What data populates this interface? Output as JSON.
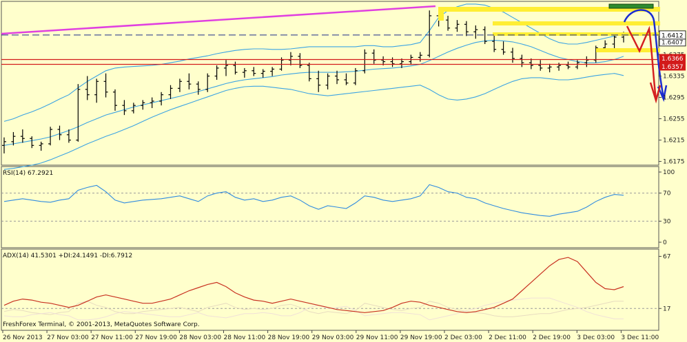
{
  "chart_data": [
    {
      "type": "line",
      "panel": "price",
      "series": [
        {
          "role": "bars",
          "ohlc": [
            [
              1.6205,
              1.622,
              1.619,
              1.6212
            ],
            [
              1.6212,
              1.623,
              1.6205,
              1.6222
            ],
            [
              1.6222,
              1.6235,
              1.621,
              1.6218
            ],
            [
              1.6218,
              1.6222,
              1.62,
              1.6205
            ],
            [
              1.6205,
              1.6212,
              1.6195,
              1.6208
            ],
            [
              1.6208,
              1.624,
              1.6205,
              1.6235
            ],
            [
              1.6235,
              1.6242,
              1.6215,
              1.6225
            ],
            [
              1.6225,
              1.6235,
              1.621,
              1.6215
            ],
            [
              1.6215,
              1.632,
              1.6212,
              1.631
            ],
            [
              1.631,
              1.6335,
              1.629,
              1.63
            ],
            [
              1.63,
              1.633,
              1.6285,
              1.6325
            ],
            [
              1.6325,
              1.634,
              1.6295,
              1.6305
            ],
            [
              1.6305,
              1.631,
              1.627,
              1.628
            ],
            [
              1.628,
              1.629,
              1.6262,
              1.627
            ],
            [
              1.627,
              1.6285,
              1.6265,
              1.628
            ],
            [
              1.628,
              1.629,
              1.6272,
              1.6285
            ],
            [
              1.6285,
              1.6295,
              1.6275,
              1.6288
            ],
            [
              1.6288,
              1.6305,
              1.628,
              1.63
            ],
            [
              1.63,
              1.6318,
              1.6292,
              1.6312
            ],
            [
              1.6312,
              1.633,
              1.6305,
              1.6325
            ],
            [
              1.6325,
              1.634,
              1.631,
              1.632
            ],
            [
              1.632,
              1.6325,
              1.63,
              1.631
            ],
            [
              1.631,
              1.634,
              1.6305,
              1.6335
            ],
            [
              1.6335,
              1.6355,
              1.6328,
              1.635
            ],
            [
              1.635,
              1.6365,
              1.6335,
              1.6355
            ],
            [
              1.6355,
              1.6362,
              1.6338,
              1.6342
            ],
            [
              1.6342,
              1.635,
              1.6332,
              1.6345
            ],
            [
              1.6345,
              1.6352,
              1.6335,
              1.634
            ],
            [
              1.634,
              1.6348,
              1.6332,
              1.6344
            ],
            [
              1.6344,
              1.6352,
              1.6335,
              1.6348
            ],
            [
              1.6348,
              1.637,
              1.6345,
              1.6365
            ],
            [
              1.6365,
              1.638,
              1.6355,
              1.6372
            ],
            [
              1.6372,
              1.6378,
              1.635,
              1.6355
            ],
            [
              1.6355,
              1.636,
              1.6325,
              1.633
            ],
            [
              1.633,
              1.6345,
              1.6305,
              1.6318
            ],
            [
              1.6318,
              1.634,
              1.631,
              1.6335
            ],
            [
              1.6335,
              1.6345,
              1.632,
              1.6328
            ],
            [
              1.6328,
              1.634,
              1.6318,
              1.6322
            ],
            [
              1.6322,
              1.635,
              1.6318,
              1.6345
            ],
            [
              1.6345,
              1.6385,
              1.634,
              1.6378
            ],
            [
              1.6378,
              1.6385,
              1.6358,
              1.6365
            ],
            [
              1.6365,
              1.6372,
              1.6355,
              1.6362
            ],
            [
              1.6362,
              1.637,
              1.6352,
              1.6358
            ],
            [
              1.6358,
              1.6368,
              1.635,
              1.6362
            ],
            [
              1.6362,
              1.6375,
              1.6356,
              1.637
            ],
            [
              1.637,
              1.638,
              1.6362,
              1.6374
            ],
            [
              1.6374,
              1.6458,
              1.637,
              1.6448
            ],
            [
              1.6448,
              1.6462,
              1.6428,
              1.644
            ],
            [
              1.644,
              1.6448,
              1.642,
              1.6425
            ],
            [
              1.6425,
              1.644,
              1.6418,
              1.6432
            ],
            [
              1.6432,
              1.6438,
              1.641,
              1.6418
            ],
            [
              1.6418,
              1.643,
              1.6405,
              1.6422
            ],
            [
              1.6422,
              1.6428,
              1.6395,
              1.64
            ],
            [
              1.64,
              1.6412,
              1.638,
              1.6385
            ],
            [
              1.6385,
              1.64,
              1.6375,
              1.638
            ],
            [
              1.638,
              1.6388,
              1.636,
              1.6368
            ],
            [
              1.6368,
              1.6375,
              1.6352,
              1.636
            ],
            [
              1.636,
              1.6368,
              1.6348,
              1.6355
            ],
            [
              1.6355,
              1.6365,
              1.6345,
              1.635
            ],
            [
              1.635,
              1.6358,
              1.6342,
              1.6352
            ],
            [
              1.6352,
              1.636,
              1.6345,
              1.6355
            ],
            [
              1.6355,
              1.6362,
              1.6348,
              1.6352
            ],
            [
              1.6352,
              1.6365,
              1.6348,
              1.636
            ],
            [
              1.636,
              1.6372,
              1.6352,
              1.6365
            ],
            [
              1.6365,
              1.6392,
              1.636,
              1.6388
            ],
            [
              1.6388,
              1.6402,
              1.638,
              1.6395
            ],
            [
              1.6395,
              1.6412,
              1.6385,
              1.6408
            ],
            [
              1.6408,
              1.6418,
              1.6398,
              1.6412
            ]
          ]
        },
        {
          "role": "bollinger-upper",
          "values": [
            1.625,
            1.6255,
            1.6262,
            1.6268,
            1.6275,
            1.6283,
            1.6292,
            1.63,
            1.6313,
            1.6325,
            1.6335,
            1.6345,
            1.635,
            1.6352,
            1.6353,
            1.6354,
            1.6355,
            1.6357,
            1.636,
            1.6363,
            1.6367,
            1.637,
            1.6373,
            1.6377,
            1.638,
            1.6383,
            1.6385,
            1.6386,
            1.6386,
            1.6385,
            1.6385,
            1.6386,
            1.6388,
            1.639,
            1.639,
            1.639,
            1.639,
            1.639,
            1.639,
            1.6392,
            1.6392,
            1.639,
            1.639,
            1.6392,
            1.6394,
            1.6398,
            1.642,
            1.6445,
            1.6458,
            1.6465,
            1.647,
            1.647,
            1.6468,
            1.6462,
            1.6455,
            1.6445,
            1.6435,
            1.6425,
            1.6415,
            1.6405,
            1.6398,
            1.6395,
            1.6395,
            1.6398,
            1.6402,
            1.6406,
            1.641,
            1.6414
          ]
        },
        {
          "role": "bollinger-middle",
          "values": [
            1.6205,
            1.6208,
            1.6211,
            1.6214,
            1.6217,
            1.6221,
            1.6227,
            1.6233,
            1.624,
            1.6248,
            1.6255,
            1.6262,
            1.6267,
            1.6272,
            1.6277,
            1.6281,
            1.6285,
            1.6289,
            1.6293,
            1.6297,
            1.6302,
            1.6306,
            1.6311,
            1.6316,
            1.6321,
            1.6325,
            1.6328,
            1.633,
            1.6332,
            1.6334,
            1.6337,
            1.6339,
            1.6341,
            1.6342,
            1.6342,
            1.6342,
            1.6342,
            1.6343,
            1.6344,
            1.6346,
            1.6348,
            1.6349,
            1.635,
            1.6352,
            1.6354,
            1.6357,
            1.6364,
            1.6372,
            1.638,
            1.6387,
            1.6393,
            1.6398,
            1.6401,
            1.6402,
            1.6401,
            1.6399,
            1.6395,
            1.639,
            1.6383,
            1.6376,
            1.637,
            1.6366,
            1.6362,
            1.636,
            1.636,
            1.6362,
            1.6366,
            1.6372
          ]
        },
        {
          "role": "bollinger-lower",
          "values": [
            1.616,
            1.6162,
            1.6165,
            1.6168,
            1.6172,
            1.6178,
            1.6185,
            1.6192,
            1.62,
            1.6208,
            1.6215,
            1.6222,
            1.6228,
            1.6235,
            1.6242,
            1.625,
            1.6258,
            1.6265,
            1.6272,
            1.6278,
            1.6284,
            1.629,
            1.6296,
            1.6302,
            1.6308,
            1.6312,
            1.6315,
            1.6316,
            1.6316,
            1.6314,
            1.6312,
            1.631,
            1.6306,
            1.6302,
            1.63,
            1.6298,
            1.63,
            1.6302,
            1.6304,
            1.6306,
            1.6308,
            1.631,
            1.6312,
            1.6314,
            1.6316,
            1.6318,
            1.631,
            1.63,
            1.6292,
            1.629,
            1.6292,
            1.6296,
            1.6302,
            1.631,
            1.6318,
            1.6325,
            1.633,
            1.6332,
            1.6332,
            1.633,
            1.6328,
            1.6328,
            1.633,
            1.6333,
            1.6336,
            1.6338,
            1.634,
            1.6336
          ]
        }
      ],
      "ylim": [
        1.6168,
        1.6475
      ],
      "yticks": [
        "1.6175",
        "1.6215",
        "1.6255",
        "1.6295",
        "1.6335",
        "1.6375"
      ],
      "levels": {
        "blue_dashed": 1.6412,
        "red_upper": 1.6366,
        "red_lower": 1.6357
      },
      "price_tags": {
        "current": "1.6412",
        "behind_current": "1.6407",
        "red_upper": "1.6366",
        "red_lower": "1.6357"
      },
      "colors": {
        "bars": "#000000",
        "bollinger": "#3aa3e3",
        "trendline": "#e040e0",
        "horizontal_red": "#d21a1a",
        "zone_yellow": "#ffee33",
        "zone_green": "#2e8b2e",
        "forecast_blue": "#1a2bd0",
        "forecast_red": "#d42020"
      }
    },
    {
      "type": "line",
      "panel": "rsi",
      "title": "RSI(14) 67.2921",
      "ylim": [
        0,
        100
      ],
      "yticks": [
        "100",
        "70",
        "30",
        "0"
      ],
      "levels": [
        70,
        30
      ],
      "series": [
        {
          "role": "rsi",
          "values": [
            58,
            60,
            62,
            60,
            58,
            57,
            60,
            62,
            74,
            78,
            81,
            72,
            60,
            56,
            58,
            60,
            61,
            62,
            64,
            66,
            62,
            58,
            66,
            70,
            72,
            64,
            60,
            62,
            58,
            60,
            64,
            66,
            60,
            52,
            47,
            52,
            50,
            48,
            56,
            66,
            64,
            60,
            58,
            60,
            62,
            66,
            82,
            78,
            72,
            70,
            64,
            62,
            56,
            52,
            48,
            45,
            42,
            40,
            38,
            37,
            40,
            42,
            44,
            50,
            58,
            64,
            68,
            67
          ]
        }
      ]
    },
    {
      "type": "line",
      "panel": "adx",
      "title": "ADX(14) 41.5301 +DI:24.1491 -DI:6.7912",
      "ylim": [
        0,
        70
      ],
      "yticks": [
        "67",
        "17"
      ],
      "series": [
        {
          "role": "adx",
          "values": [
            20,
            24,
            26,
            25,
            23,
            22,
            20,
            18,
            20,
            24,
            28,
            30,
            28,
            26,
            24,
            22,
            22,
            24,
            26,
            30,
            34,
            37,
            40,
            42,
            38,
            32,
            28,
            25,
            24,
            22,
            24,
            26,
            24,
            22,
            20,
            18,
            16,
            15,
            14,
            13,
            14,
            15,
            18,
            22,
            24,
            23,
            20,
            18,
            16,
            14,
            13,
            14,
            16,
            18,
            22,
            26,
            34,
            42,
            50,
            58,
            64,
            66,
            62,
            52,
            42,
            36,
            35,
            38
          ]
        },
        {
          "role": "+di",
          "values": [
            14,
            16,
            15,
            13,
            12,
            11,
            13,
            14,
            22,
            24,
            20,
            18,
            14,
            12,
            12,
            14,
            15,
            16,
            17,
            18,
            16,
            14,
            18,
            20,
            22,
            18,
            16,
            17,
            16,
            17,
            20,
            21,
            18,
            14,
            12,
            14,
            13,
            12,
            15,
            22,
            20,
            18,
            16,
            15,
            17,
            18,
            24,
            22,
            18,
            16,
            14,
            13,
            12,
            10,
            9,
            9,
            10,
            11,
            12,
            12,
            14,
            16,
            17,
            18,
            20,
            22,
            24,
            24
          ]
        },
        {
          "role": "-di",
          "values": [
            10,
            9,
            9,
            11,
            12,
            13,
            11,
            10,
            6,
            6,
            7,
            9,
            12,
            14,
            13,
            12,
            11,
            10,
            9,
            9,
            11,
            13,
            10,
            9,
            8,
            10,
            12,
            12,
            13,
            12,
            10,
            10,
            13,
            18,
            20,
            17,
            18,
            19,
            15,
            10,
            11,
            12,
            13,
            13,
            12,
            11,
            6,
            8,
            10,
            12,
            15,
            17,
            20,
            22,
            24,
            25,
            26,
            27,
            27,
            27,
            24,
            21,
            18,
            14,
            11,
            9,
            7,
            7
          ]
        }
      ]
    }
  ],
  "xticks": [
    "26 Nov 2013",
    "27 Nov 03:00",
    "27 Nov 11:00",
    "27 Nov 19:00",
    "28 Nov 03:00",
    "28 Nov 11:00",
    "28 Nov 19:00",
    "29 Nov 03:00",
    "29 Nov 11:00",
    "29 Nov 19:00",
    "2 Dec 03:00",
    "2 Dec 11:00",
    "2 Dec 19:00",
    "3 Dec 03:00",
    "3 Dec 11:00"
  ],
  "copyright": "FreshForex Terminal, © 2001-2013, MetaQuotes Software Corp."
}
